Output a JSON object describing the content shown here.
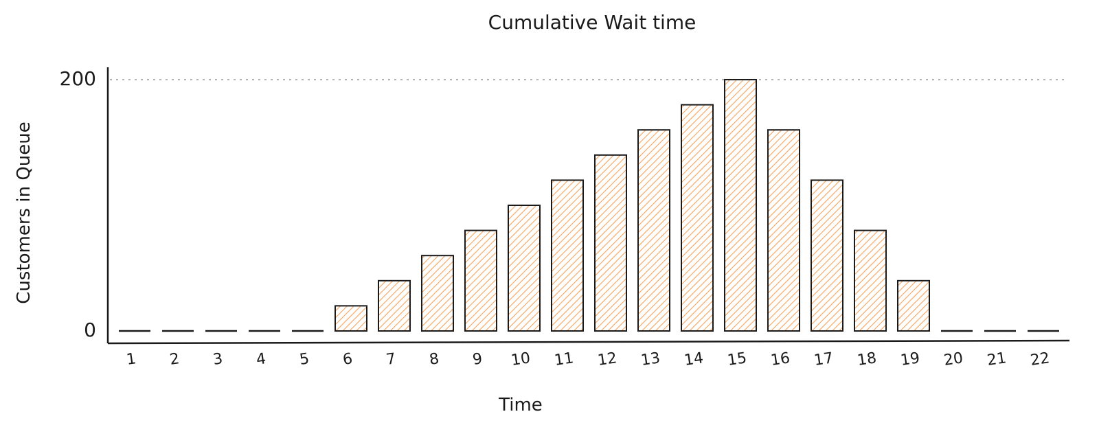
{
  "chart_data": {
    "type": "bar",
    "title": "Cumulative Wait time",
    "xlabel": "Time",
    "ylabel": "Customers in Queue",
    "categories": [
      "1",
      "2",
      "3",
      "4",
      "5",
      "6",
      "7",
      "8",
      "9",
      "10",
      "11",
      "12",
      "13",
      "14",
      "15",
      "16",
      "17",
      "18",
      "19",
      "20",
      "21",
      "22"
    ],
    "values": [
      0,
      0,
      0,
      0,
      0,
      20,
      40,
      60,
      80,
      100,
      120,
      140,
      160,
      180,
      200,
      160,
      120,
      80,
      40,
      0,
      0,
      0
    ],
    "ylim": [
      0,
      200
    ],
    "yticks": [
      "0",
      "200"
    ],
    "grid": "dotted line at 200",
    "legend": "none",
    "bar_fill_color": "#f7a35c",
    "bar_stroke_color": "#1a1a1a"
  }
}
